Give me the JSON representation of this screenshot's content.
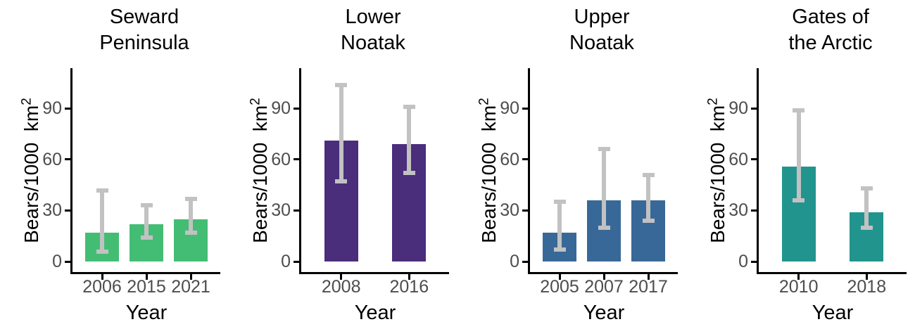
{
  "figure": {
    "ylabel_main": "Bears/1000  km",
    "ylabel_sup": "2",
    "xlabel": "Year",
    "background_color": "#ffffff",
    "axis_color": "#000000",
    "tick_label_color": "#4d4d4d",
    "title_color": "#000000",
    "error_bar_color": "#c2c2c2",
    "yticks": [
      0,
      30,
      60,
      90
    ],
    "ylim": [
      0,
      113
    ]
  },
  "chart_data": [
    {
      "type": "bar",
      "title_lines": [
        "Seward",
        "Peninsula"
      ],
      "title": "Seward Peninsula",
      "xlabel": "Year",
      "ylabel": "Bears/1000 km2",
      "categories": [
        "2006",
        "2015",
        "2021"
      ],
      "values": [
        17,
        22,
        25
      ],
      "error_low": [
        6,
        14,
        17
      ],
      "error_high": [
        42,
        33,
        37
      ],
      "bar_color": "#44bd74",
      "ylim": [
        0,
        113
      ],
      "grid": false,
      "legend": false
    },
    {
      "type": "bar",
      "title_lines": [
        "Lower",
        "Noatak"
      ],
      "title": "Lower Noatak",
      "xlabel": "Year",
      "ylabel": "Bears/1000 km2",
      "categories": [
        "2008",
        "2016"
      ],
      "values": [
        71,
        69
      ],
      "error_low": [
        47,
        52
      ],
      "error_high": [
        104,
        91
      ],
      "bar_color": "#4a2d7b",
      "ylim": [
        0,
        113
      ],
      "grid": false,
      "legend": false
    },
    {
      "type": "bar",
      "title_lines": [
        "Upper",
        "Noatak"
      ],
      "title": "Upper Noatak",
      "xlabel": "Year",
      "ylabel": "Bears/1000 km2",
      "categories": [
        "2005",
        "2007",
        "2017"
      ],
      "values": [
        17,
        36,
        36
      ],
      "error_low": [
        7,
        20,
        24
      ],
      "error_high": [
        35,
        66,
        51
      ],
      "bar_color": "#386898",
      "ylim": [
        0,
        113
      ],
      "grid": false,
      "legend": false
    },
    {
      "type": "bar",
      "title_lines": [
        "Gates of",
        "the Arctic"
      ],
      "title": "Gates of the Arctic",
      "xlabel": "Year",
      "ylabel": "Bears/1000 km2",
      "categories": [
        "2010",
        "2018"
      ],
      "values": [
        56,
        29
      ],
      "error_low": [
        36,
        20
      ],
      "error_high": [
        89,
        43
      ],
      "bar_color": "#21948e",
      "ylim": [
        0,
        113
      ],
      "grid": false,
      "legend": false
    }
  ]
}
